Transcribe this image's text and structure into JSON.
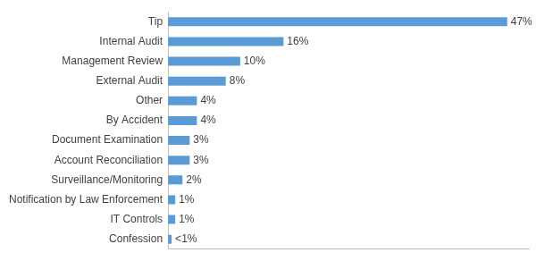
{
  "chart_data": {
    "type": "bar",
    "orientation": "horizontal",
    "categories": [
      "Tip",
      "Internal Audit",
      "Management Review",
      "External Audit",
      "Other",
      "By Accident",
      "Document Examination",
      "Account Reconciliation",
      "Surveillance/Monitoring",
      "Notification by Law Enforcement",
      "IT Controls",
      "Confession"
    ],
    "values": [
      47,
      16,
      10,
      8,
      4,
      4,
      3,
      3,
      2,
      1,
      1,
      0.5
    ],
    "value_labels": [
      "47%",
      "16%",
      "10%",
      "8%",
      "4%",
      "4%",
      "3%",
      "3%",
      "2%",
      "1%",
      "1%",
      "<1%"
    ],
    "color": "#5b9bd5",
    "xlim": [
      0,
      50
    ],
    "grid": false,
    "data_labels": true,
    "tick_labels": "y"
  }
}
